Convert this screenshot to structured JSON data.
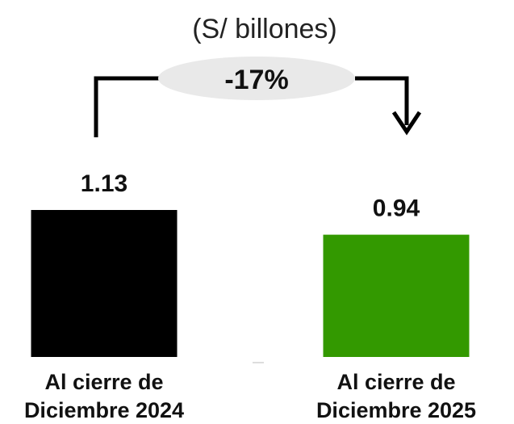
{
  "chart_data": {
    "type": "bar",
    "subtitle": "(S/ billones)",
    "categories": [
      "Al cierre de Diciembre 2024",
      "Al cierre de Diciembre 2025"
    ],
    "category_lines": [
      [
        "Al cierre de",
        "Diciembre 2024"
      ],
      [
        "Al cierre de",
        "Diciembre 2025"
      ]
    ],
    "values": [
      1.13,
      0.94
    ],
    "value_labels": [
      "1.13",
      "0.94"
    ],
    "colors": [
      "#000000",
      "#339900"
    ],
    "change_label": "-17%",
    "ylim": [
      0,
      1.13
    ],
    "grid": false,
    "legend": "none"
  }
}
